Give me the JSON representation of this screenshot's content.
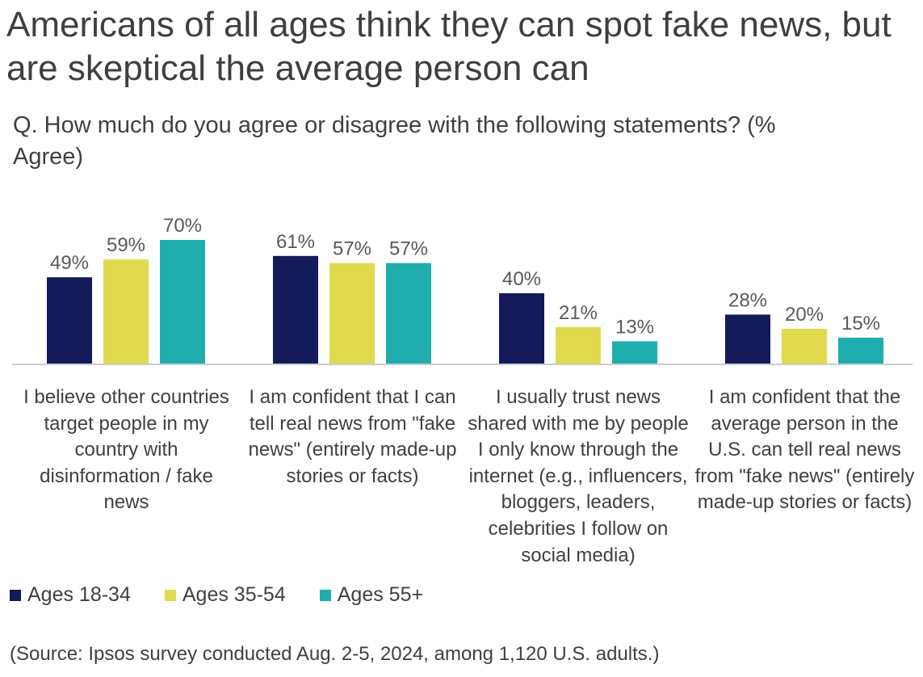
{
  "title": "Americans of all ages think they can spot fake news, but are skeptical the average person can",
  "subtitle": "Q. How much do you agree or disagree with the following statements? (% Agree)",
  "source": "(Source: Ipsos survey conducted Aug. 2-5, 2024, among 1,120 U.S. adults.)",
  "chart_data": {
    "type": "bar",
    "categories": [
      "I believe other countries target people in my country with disinformation / fake news",
      "I am confident that I can tell real news from \"fake news\" (entirely made-up stories or facts)",
      "I usually trust news shared with me by people I only know through the internet (e.g., influencers, bloggers, leaders, celebrities I follow on social media)",
      "I am confident that the average person in the U.S. can tell real news from \"fake news\" (entirely made-up stories or facts)"
    ],
    "series": [
      {
        "name": "Ages 18-34",
        "color": "#141b5a",
        "values": [
          49,
          61,
          40,
          28
        ],
        "labels": [
          "49%",
          "61%",
          "40%",
          "28%"
        ]
      },
      {
        "name": "Ages 35-54",
        "color": "#e1da4f",
        "values": [
          59,
          57,
          21,
          20
        ],
        "labels": [
          "59%",
          "57%",
          "21%",
          "20%"
        ]
      },
      {
        "name": "Ages 55+",
        "color": "#1fadad",
        "values": [
          70,
          57,
          13,
          15
        ],
        "labels": [
          "70%",
          "57%",
          "13%",
          "15%"
        ]
      }
    ],
    "unit": "%",
    "ylim": [
      0,
      100
    ],
    "grid": false,
    "legend": "bottom-left"
  }
}
